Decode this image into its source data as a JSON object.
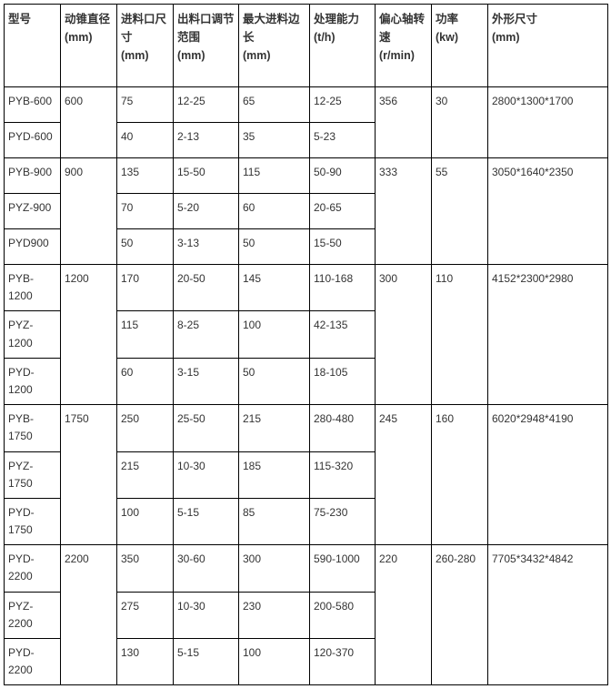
{
  "table": {
    "headers": [
      "型号",
      "动锥直径\n(mm)",
      "进料口尺寸\n(mm)",
      "出料口调节范围\n(mm)",
      "最大进料边长\n(mm)",
      "处理能力\n(t/h)",
      "偏心轴转速\n(r/min)",
      "功率\n(kw)",
      "外形尺寸\n(mm)"
    ],
    "rows": [
      {
        "m": "PYB-600",
        "d": "600",
        "f": "75",
        "o": "12-25",
        "mf": "65",
        "c": "12-25",
        "s": "356",
        "p": "30",
        "dim": "2800*1300*1700",
        "rs_d": 2,
        "rs_s": 2,
        "rs_p": 2,
        "rs_dim": 2
      },
      {
        "m": "PYD-600",
        "f": "40",
        "o": "2-13",
        "mf": "35",
        "c": "5-23"
      },
      {
        "m": "PYB-900",
        "d": "900",
        "f": "135",
        "o": "15-50",
        "mf": "115",
        "c": "50-90",
        "s": "333",
        "p": "55",
        "dim": "3050*1640*2350",
        "rs_d": 3,
        "rs_s": 3,
        "rs_p": 3,
        "rs_dim": 3
      },
      {
        "m": "PYZ-900",
        "f": "70",
        "o": "5-20",
        "mf": "60",
        "c": "20-65"
      },
      {
        "m": "PYD900",
        "f": "50",
        "o": "3-13",
        "mf": "50",
        "c": "15-50"
      },
      {
        "m": "PYB-1200",
        "d": "1200",
        "f": "170",
        "o": "20-50",
        "mf": "145",
        "c": "110-168",
        "s": "300",
        "p": "110",
        "dim": "4152*2300*2980",
        "rs_d": 3,
        "rs_s": 3,
        "rs_p": 3,
        "rs_dim": 3
      },
      {
        "m": "PYZ-1200",
        "f": "115",
        "o": "8-25",
        "mf": "100",
        "c": "42-135"
      },
      {
        "m": "PYD-1200",
        "f": "60",
        "o": "3-15",
        "mf": "50",
        "c": "18-105"
      },
      {
        "m": "PYB-1750",
        "d": "1750",
        "f": "250",
        "o": "25-50",
        "mf": "215",
        "c": "280-480",
        "s": "245",
        "p": "160",
        "dim": "6020*2948*4190",
        "rs_d": 3,
        "rs_s": 3,
        "rs_p": 3,
        "rs_dim": 3
      },
      {
        "m": "PYZ-1750",
        "f": "215",
        "o": "10-30",
        "mf": "185",
        "c": "115-320"
      },
      {
        "m": "PYD-1750",
        "f": "100",
        "o": "5-15",
        "mf": "85",
        "c": "75-230"
      },
      {
        "m": "PYD-2200",
        "d": "2200",
        "f": "350",
        "o": "30-60",
        "mf": "300",
        "c": "590-1000",
        "s": "220",
        "p": "260-280",
        "dim": "7705*3432*4842",
        "rs_d": 3,
        "rs_s": 3,
        "rs_p": 3,
        "rs_dim": 3
      },
      {
        "m": "PYZ-2200",
        "f": "275",
        "o": "10-30",
        "mf": "230",
        "c": "200-580"
      },
      {
        "m": "PYD-2200",
        "f": "130",
        "o": "5-15",
        "mf": "100",
        "c": "120-370"
      }
    ]
  }
}
